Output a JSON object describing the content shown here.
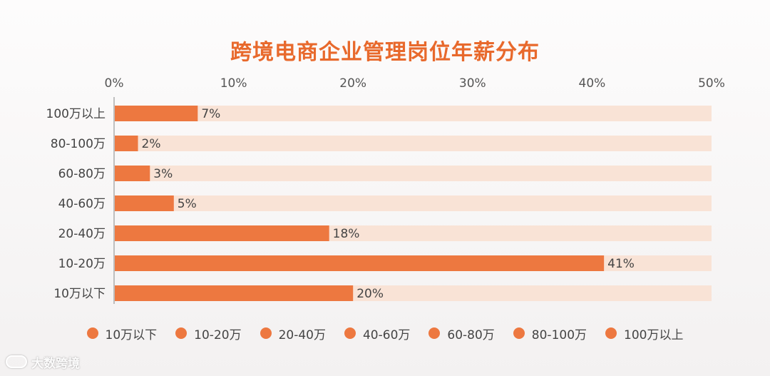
{
  "chart_data": {
    "type": "bar",
    "orientation": "horizontal",
    "title": "跨境电商企业管理岗位年薪分布",
    "categories": [
      "100万以上",
      "80-100万",
      "60-80万",
      "40-60万",
      "20-40万",
      "10-20万",
      "10万以下"
    ],
    "values": [
      7,
      2,
      3,
      5,
      18,
      41,
      20
    ],
    "value_labels": [
      "7%",
      "2%",
      "3%",
      "5%",
      "18%",
      "41%",
      "20%"
    ],
    "xlim": [
      0,
      50
    ],
    "x_ticks": [
      0,
      10,
      20,
      30,
      40,
      50
    ],
    "x_tick_labels": [
      "0%",
      "10%",
      "20%",
      "30%",
      "40%",
      "50%"
    ],
    "x_axis_position": "top",
    "grid": false,
    "bar_color": "#ed7840",
    "track_color": "#f9e3d6",
    "legend_position": "bottom",
    "legend": [
      "10万以下",
      "10-20万",
      "20-40万",
      "40-60万",
      "60-80万",
      "80-100万",
      "100万以上"
    ]
  },
  "title_color": "#e8692c",
  "watermark": {
    "icon": "brand-logo-icon",
    "text": "大数跨境"
  }
}
